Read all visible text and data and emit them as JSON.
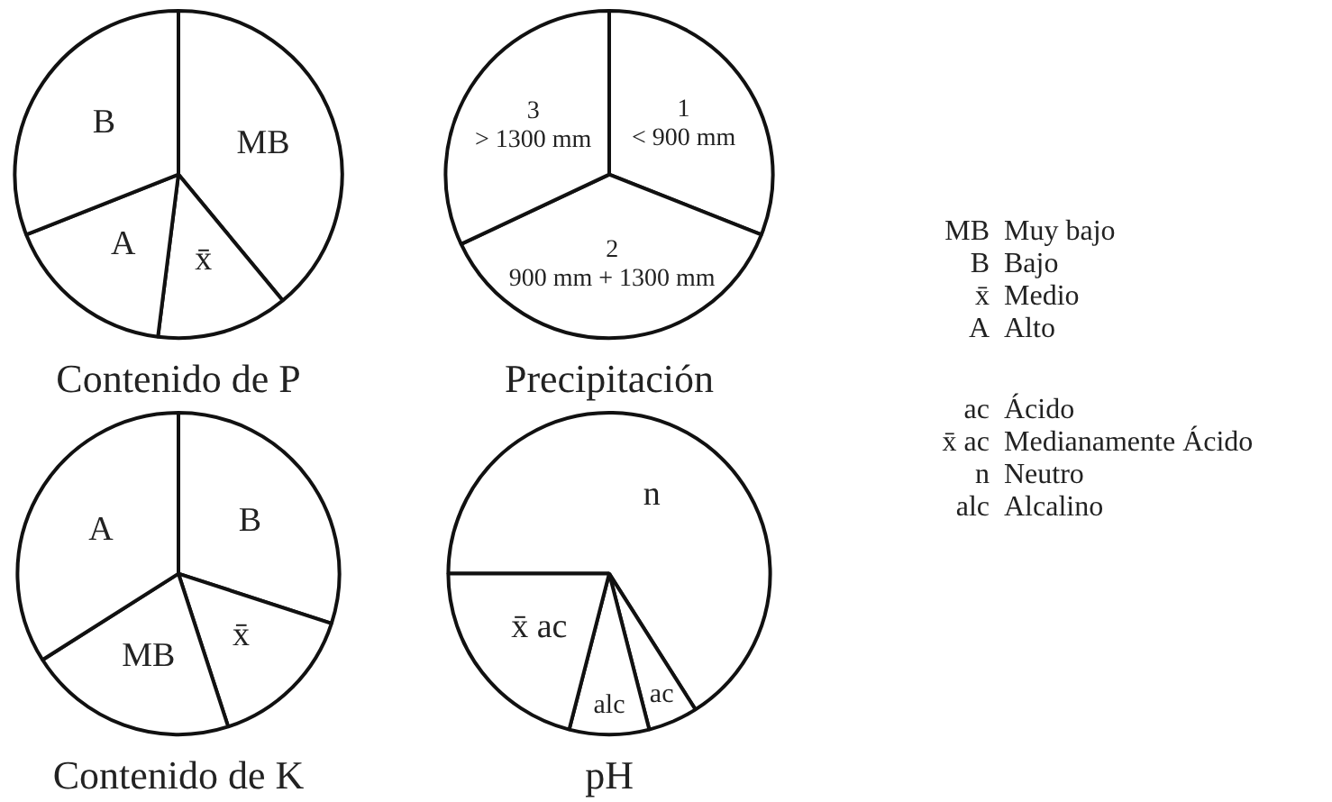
{
  "chart_data": [
    {
      "type": "pie",
      "title": "Contenido de P",
      "categories": [
        "MB",
        "x̄",
        "A",
        "B"
      ],
      "values": [
        39,
        13,
        17,
        31
      ],
      "colors": [
        "#ffffff",
        "#ffffff",
        "#ffffff",
        "#ffffff"
      ],
      "data_labels": false,
      "legend": false
    },
    {
      "type": "pie",
      "title": "Precipitación",
      "categories": [
        "1 < 900 mm",
        "2 900 mm + 1300 mm",
        "3 > 1300 mm"
      ],
      "values": [
        31,
        37,
        32
      ],
      "colors": [
        "#ffffff",
        "#ffffff",
        "#ffffff"
      ],
      "legend": false
    },
    {
      "type": "pie",
      "title": "Contenido de K",
      "categories": [
        "B",
        "x̄",
        "MB",
        "A"
      ],
      "values": [
        30,
        15,
        21,
        34
      ],
      "colors": [
        "#ffffff",
        "#ffffff",
        "#ffffff",
        "#ffffff"
      ],
      "legend": false
    },
    {
      "type": "pie",
      "title": "pH",
      "categories": [
        "n",
        "ac",
        "alc",
        "x̄ ac"
      ],
      "values": [
        66,
        5,
        8,
        21
      ],
      "colors": [
        "#ffffff",
        "#ffffff",
        "#ffffff",
        "#ffffff"
      ],
      "legend": false
    },
    {
      "type": "other",
      "categories": [
        "MB",
        "B",
        "x̄",
        "A"
      ],
      "annotations": [
        "Muy bajo",
        "Bajo",
        "Medio",
        "Alto"
      ]
    },
    {
      "type": "other",
      "categories": [
        "ac",
        "x̄ ac",
        "n",
        "alc"
      ],
      "annotations": [
        "Ácido",
        "Medianamente Ácido",
        "Neutro",
        "Alcalino"
      ]
    }
  ]
}
